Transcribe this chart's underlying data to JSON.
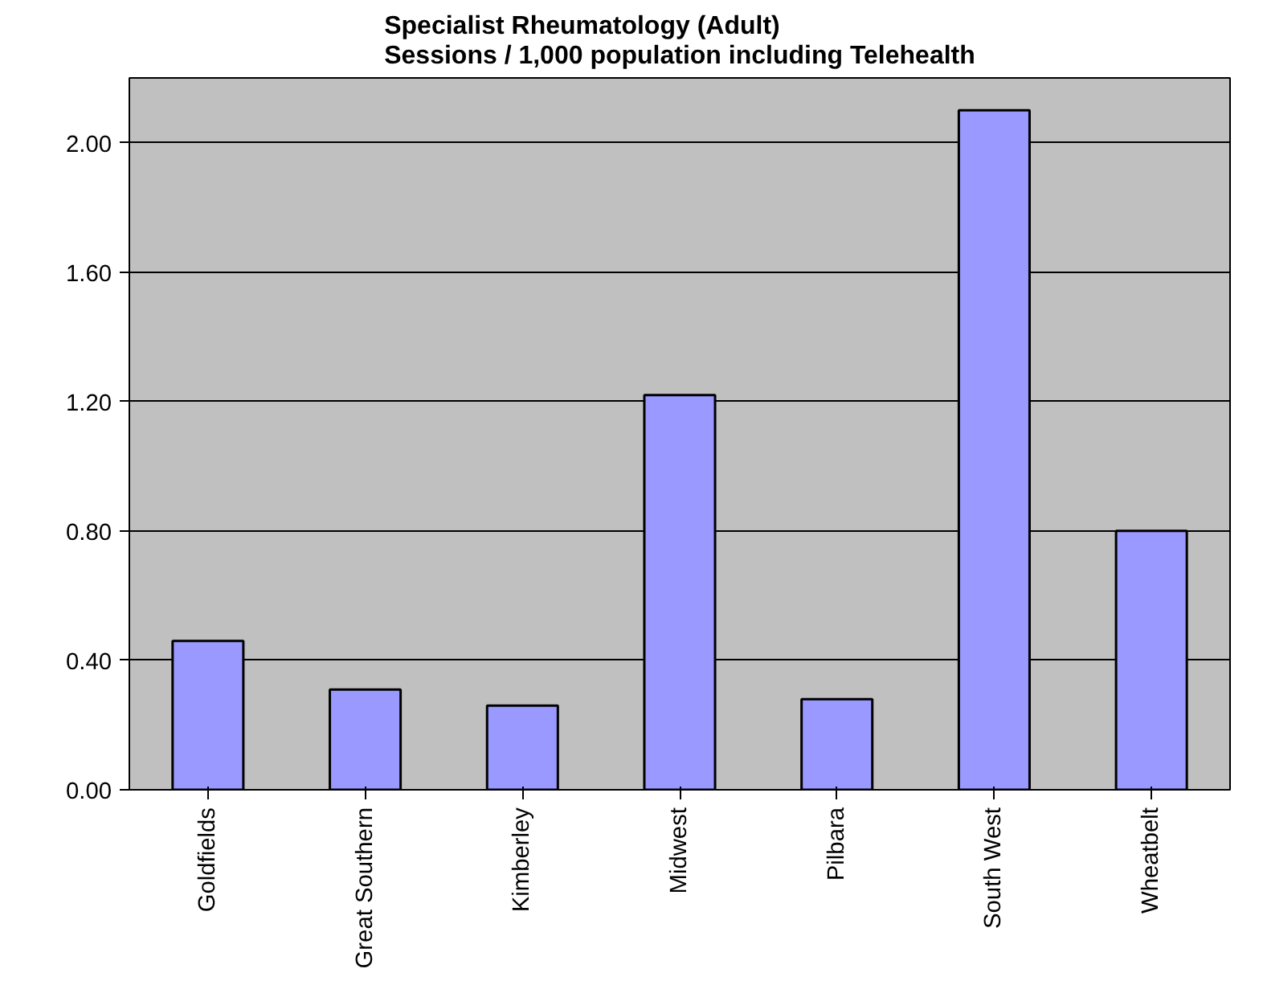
{
  "chart_data": {
    "type": "bar",
    "title": "Specialist Rheumatology (Adult)\nSessions / 1,000 population including Telehealth",
    "categories": [
      "Goldfields",
      "Great Southern",
      "Kimberley",
      "Midwest",
      "Pilbara",
      "South West",
      "Wheatbelt"
    ],
    "values": [
      0.46,
      0.31,
      0.26,
      1.22,
      0.28,
      2.1,
      0.8
    ],
    "color": "#9999ff",
    "ylim": [
      0,
      2.2
    ],
    "yticks": [
      {
        "value": 0,
        "label": "0.00"
      },
      {
        "value": 0.4,
        "label": "0.40"
      },
      {
        "value": 0.8,
        "label": "0.80"
      },
      {
        "value": 1.2,
        "label": "1.20"
      },
      {
        "value": 1.6,
        "label": "1.60"
      },
      {
        "value": 2.0,
        "label": "2.00"
      }
    ],
    "grid": "y"
  }
}
